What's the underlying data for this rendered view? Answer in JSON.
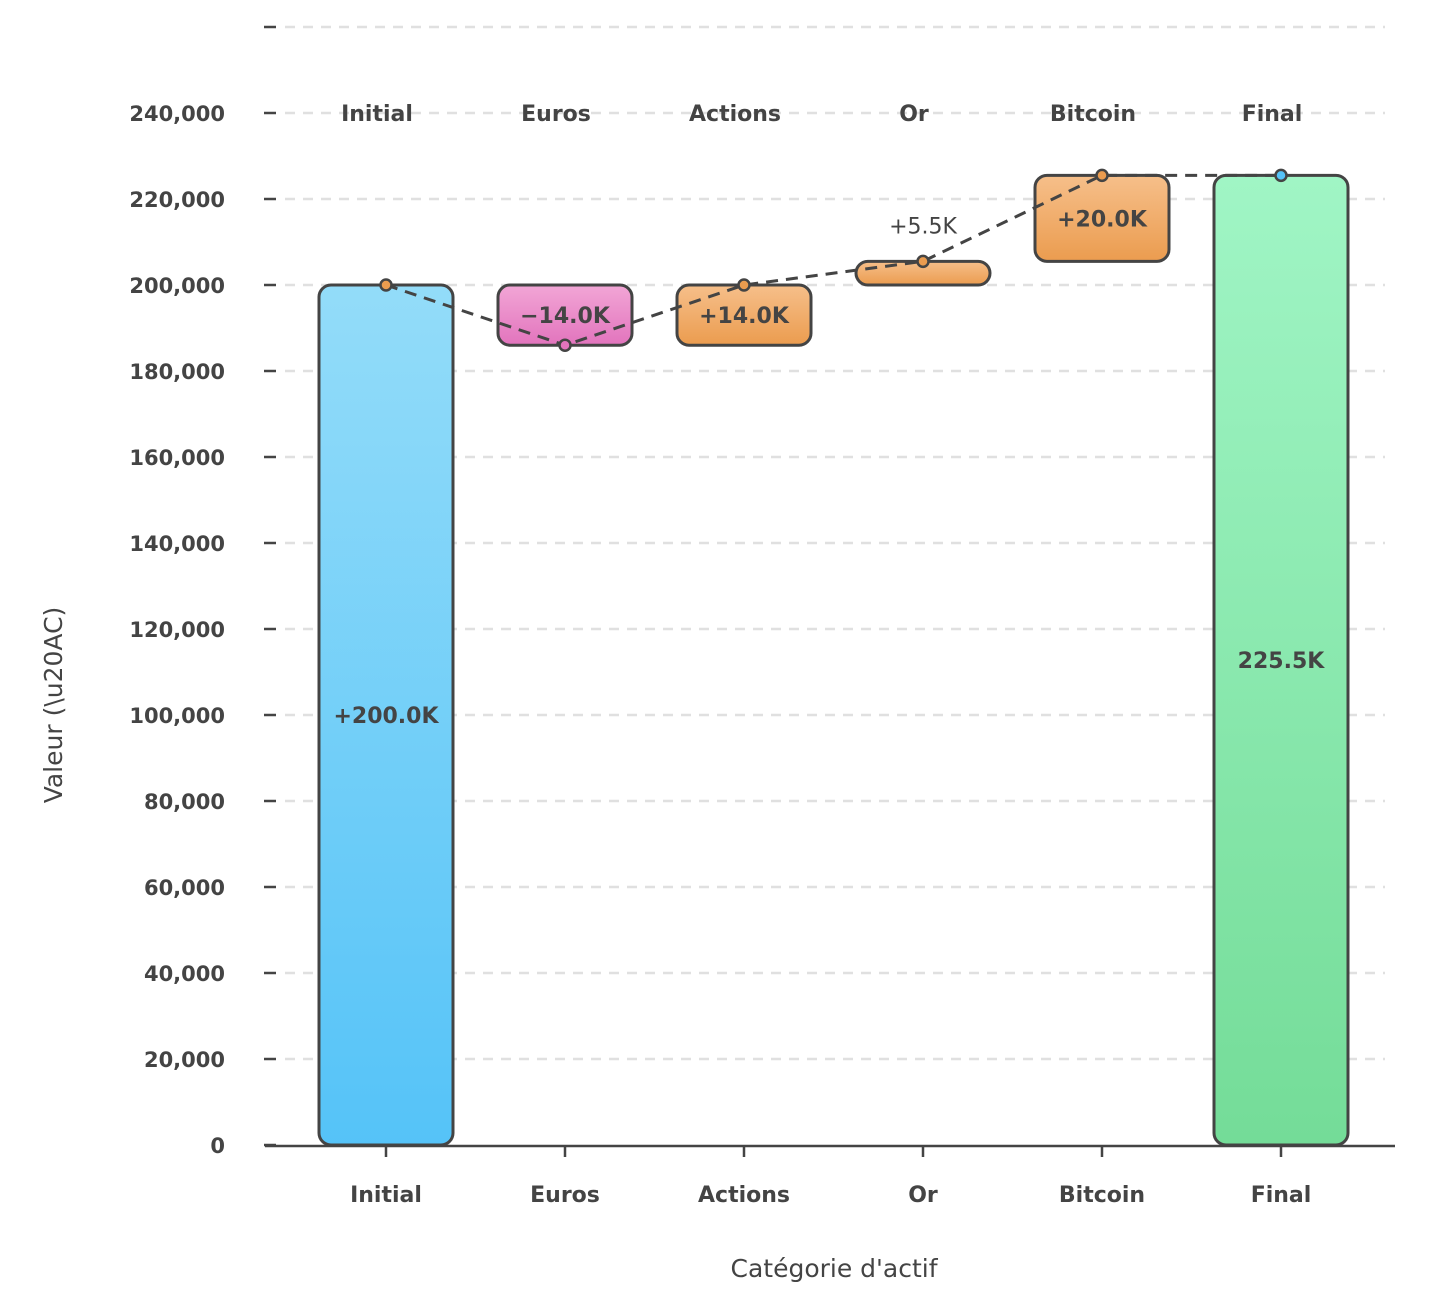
{
  "chart_data": {
    "type": "waterfall",
    "title": "",
    "xlabel": "Catégorie d'actif",
    "ylabel": "Valeur (\\u20AC)",
    "ylim": [
      0,
      260000
    ],
    "yticks": [
      0,
      20000,
      40000,
      60000,
      80000,
      100000,
      120000,
      140000,
      160000,
      180000,
      200000,
      220000,
      240000
    ],
    "ytick_labels": [
      "0",
      "20,000",
      "40,000",
      "60,000",
      "80,000",
      "100,000",
      "120,000",
      "140,000",
      "160,000",
      "180,000",
      "200,000",
      "220,000",
      "240,000"
    ],
    "grid": true,
    "categories": [
      "Initial",
      "Euros",
      "Actions",
      "Or",
      "Bitcoin",
      "Final"
    ],
    "values": [
      200000,
      -14000,
      14000,
      5500,
      20000,
      225500
    ],
    "kinds": [
      "total",
      "delta",
      "delta",
      "delta",
      "delta",
      "total"
    ],
    "data_labels": [
      "+200.0K",
      "−14.0K",
      "+14.0K",
      "+5.5K",
      "+20.0K",
      "225.5K"
    ],
    "colors": {
      "initial": [
        "#93dcf9",
        "#55c3f8"
      ],
      "negative": [
        "#f2a6d6",
        "#e274bd"
      ],
      "positive": [
        "#f6bf8a",
        "#eb9c4f"
      ],
      "final": [
        "#a0f5c5",
        "#74dc98"
      ],
      "outline": "#444444",
      "connector": "#444444",
      "grid": "#e0e0e0"
    }
  }
}
